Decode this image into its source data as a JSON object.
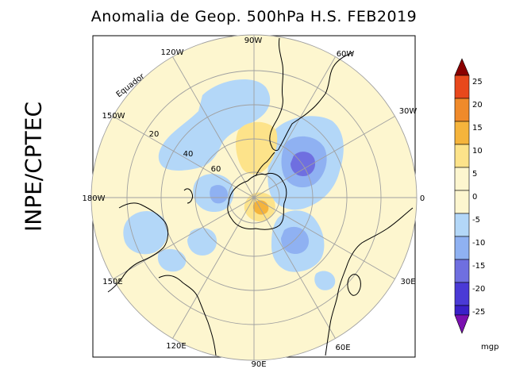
{
  "title": "Anomalia de Geop. 500hPa H.S. FEB2019",
  "source_label": "INPE/CPTEC",
  "map": {
    "longitude_labels": [
      "90W",
      "60W",
      "30W",
      "0",
      "30E",
      "60E",
      "90E",
      "120E",
      "150E",
      "180W",
      "150W",
      "120W"
    ],
    "latitude_labels": [
      "Equador",
      "20",
      "40",
      "60"
    ]
  },
  "colorbar": {
    "unit": "mgp",
    "ticks": [
      "25",
      "20",
      "15",
      "10",
      "5",
      "0",
      "-5",
      "-10",
      "-15",
      "-20",
      "-25"
    ],
    "colors": [
      "#8a0000",
      "#e8481c",
      "#f08a2a",
      "#f5b43c",
      "#fde38a",
      "#fdf6cf",
      "#b3d7f8",
      "#8fb1f2",
      "#6f6fe0",
      "#4a3ad6",
      "#3a20c8",
      "#7a10b0",
      "#500070"
    ]
  }
}
